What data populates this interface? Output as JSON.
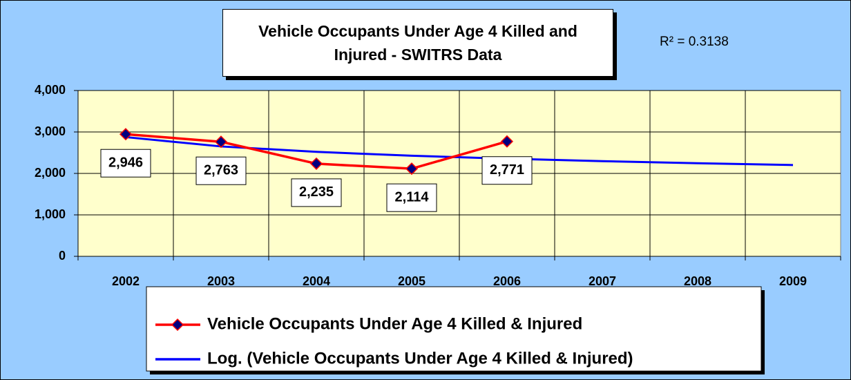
{
  "chart_data": {
    "type": "line",
    "title": "Vehicle Occupants Under Age 4 Killed and Injured - SWITRS Data",
    "annotation": "R² = 0.3138",
    "categories": [
      "2002",
      "2003",
      "2004",
      "2005",
      "2006",
      "2007",
      "2008",
      "2009"
    ],
    "series": [
      {
        "name": "Vehicle Occupants Under Age 4 Killed & Injured",
        "color": "#ff0000",
        "marker_color": "#000080",
        "values": [
          2946,
          2763,
          2235,
          2114,
          2771,
          null,
          null,
          null
        ],
        "value_labels": [
          "2,946",
          "2,763",
          "2,235",
          "2,114",
          "2,771",
          null,
          null,
          null
        ]
      },
      {
        "name": "Log. (Vehicle Occupants Under Age 4 Killed & Injured)",
        "color": "#0000ff",
        "values": [
          2876,
          2651,
          2520,
          2427,
          2355,
          2296,
          2246,
          2202
        ]
      }
    ],
    "ylim": [
      0,
      4000
    ],
    "yticks": [
      {
        "value": 0,
        "label": "0"
      },
      {
        "value": 1000,
        "label": "1,000"
      },
      {
        "value": 2000,
        "label": "2,000"
      },
      {
        "value": 3000,
        "label": "3,000"
      },
      {
        "value": 4000,
        "label": "4,000"
      }
    ],
    "grid": true
  }
}
